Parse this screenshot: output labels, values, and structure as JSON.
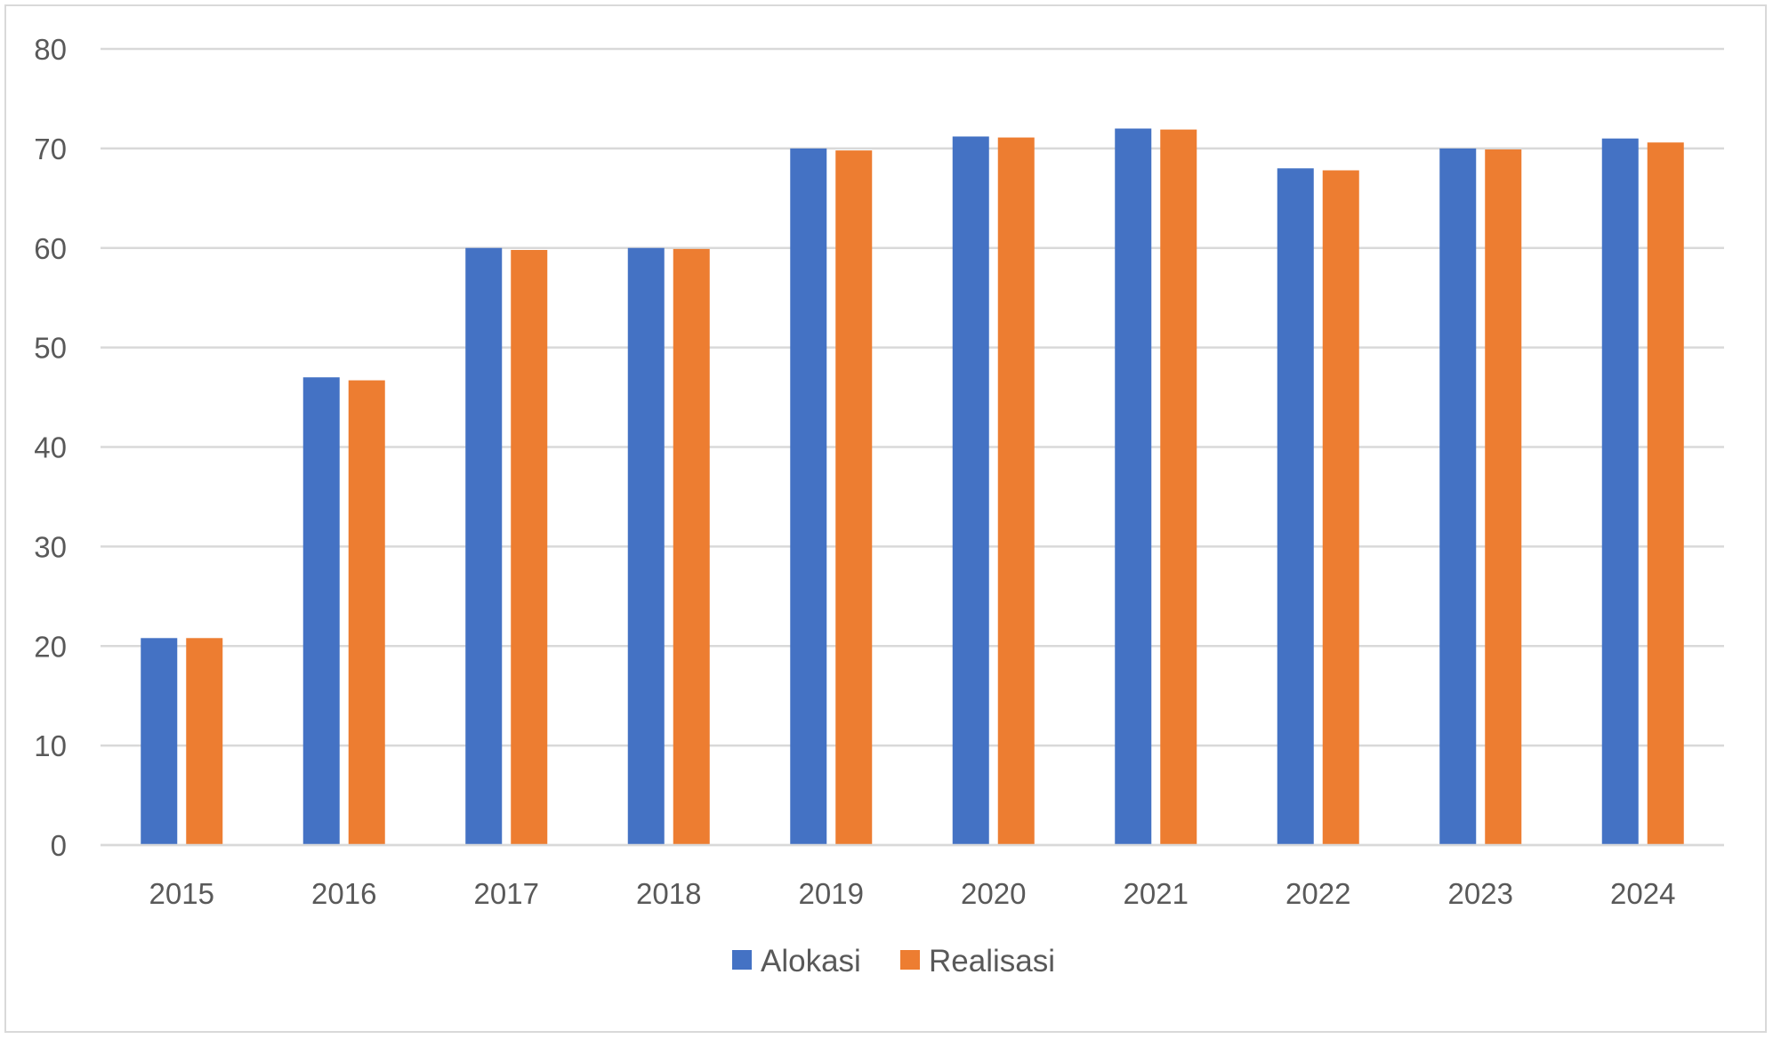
{
  "chart_data": {
    "type": "bar",
    "title": "",
    "xlabel": "",
    "ylabel": "",
    "categories": [
      "2015",
      "2016",
      "2017",
      "2018",
      "2019",
      "2020",
      "2021",
      "2022",
      "2023",
      "2024"
    ],
    "series": [
      {
        "name": "Alokasi",
        "color": "#4472C4",
        "values": [
          20.8,
          47,
          60,
          60,
          70,
          71.2,
          72,
          68,
          70,
          71
        ]
      },
      {
        "name": "Realisasi",
        "color": "#ED7D31",
        "values": [
          20.8,
          46.7,
          59.8,
          59.9,
          69.8,
          71.1,
          71.9,
          67.8,
          69.9,
          70.6
        ]
      }
    ],
    "ylim": [
      0,
      80
    ],
    "yticks": [
      "0",
      "10",
      "20",
      "30",
      "40",
      "50",
      "60",
      "70",
      "80"
    ],
    "grid": true,
    "gridline_color": "#d9d9d9",
    "legend_position": "bottom"
  }
}
